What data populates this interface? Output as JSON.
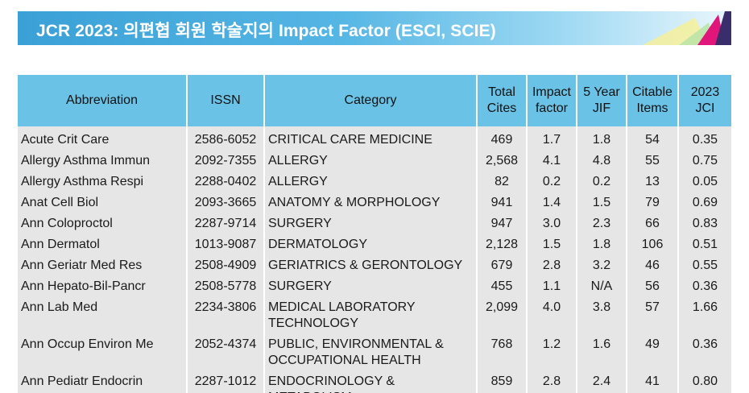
{
  "title": "JCR 2023: 의편협 회원 학술지의 Impact Factor (ESCI, SCIE)",
  "colors": {
    "title_bar": "#4aaee0",
    "header": "#6ac3e7",
    "row": "#e6e6e6"
  },
  "headers": [
    [
      "Abbreviation"
    ],
    [
      "ISSN"
    ],
    [
      "Category"
    ],
    [
      "Total",
      "Cites"
    ],
    [
      "Impact",
      "factor"
    ],
    [
      "5 Year",
      "JIF"
    ],
    [
      "Citable",
      "Items"
    ],
    [
      "2023",
      "JCI"
    ]
  ],
  "rows": [
    {
      "abbr": "Acute Crit Care",
      "issn": "2586-6052",
      "category": [
        "CRITICAL CARE MEDICINE"
      ],
      "cites": "469",
      "if": "1.7",
      "jif5": "1.8",
      "items": "54",
      "jci": "0.35"
    },
    {
      "abbr": "Allergy Asthma Immun",
      "issn": "2092-7355",
      "category": [
        "ALLERGY"
      ],
      "cites": "2,568",
      "if": "4.1",
      "jif5": "4.8",
      "items": "55",
      "jci": "0.75"
    },
    {
      "abbr": "Allergy Asthma Respi",
      "issn": "2288-0402",
      "category": [
        "ALLERGY"
      ],
      "cites": "82",
      "if": "0.2",
      "jif5": "0.2",
      "items": "13",
      "jci": "0.05"
    },
    {
      "abbr": "Anat Cell Biol",
      "issn": "2093-3665",
      "category": [
        "ANATOMY & MORPHOLOGY"
      ],
      "cites": "941",
      "if": "1.4",
      "jif5": "1.5",
      "items": "79",
      "jci": "0.69"
    },
    {
      "abbr": "Ann Coloproctol",
      "issn": "2287-9714",
      "category": [
        "SURGERY"
      ],
      "cites": "947",
      "if": "3.0",
      "jif5": "2.3",
      "items": "66",
      "jci": "0.83"
    },
    {
      "abbr": "Ann Dermatol",
      "issn": "1013-9087",
      "category": [
        "DERMATOLOGY"
      ],
      "cites": "2,128",
      "if": "1.5",
      "jif5": "1.8",
      "items": "106",
      "jci": "0.51"
    },
    {
      "abbr": "Ann Geriatr Med Res",
      "issn": "2508-4909",
      "category": [
        "GERIATRICS & GERONTOLOGY"
      ],
      "cites": "679",
      "if": "2.8",
      "jif5": "3.2",
      "items": "46",
      "jci": "0.55"
    },
    {
      "abbr": "Ann Hepato-Bil-Pancr",
      "issn": "2508-5778",
      "category": [
        "SURGERY"
      ],
      "cites": "455",
      "if": "1.1",
      "jif5": "N/A",
      "items": "56",
      "jci": "0.36"
    },
    {
      "abbr": "Ann Lab Med",
      "issn": "2234-3806",
      "category": [
        "MEDICAL LABORATORY",
        "TECHNOLOGY"
      ],
      "cites": "2,099",
      "if": "4.0",
      "jif5": "3.8",
      "items": "57",
      "jci": "1.66"
    },
    {
      "abbr": "Ann Occup Environ Me",
      "issn": "2052-4374",
      "category": [
        "PUBLIC, ENVIRONMENTAL &",
        "OCCUPATIONAL HEALTH"
      ],
      "cites": "768",
      "if": "1.2",
      "jif5": "1.6",
      "items": "49",
      "jci": "0.36"
    },
    {
      "abbr": "Ann Pediatr Endocrin",
      "issn": "2287-1012",
      "category": [
        "ENDOCRINOLOGY & METABOLISM"
      ],
      "cites": "859",
      "if": "2.8",
      "jif5": "2.4",
      "items": "41",
      "jci": "0.80"
    }
  ]
}
